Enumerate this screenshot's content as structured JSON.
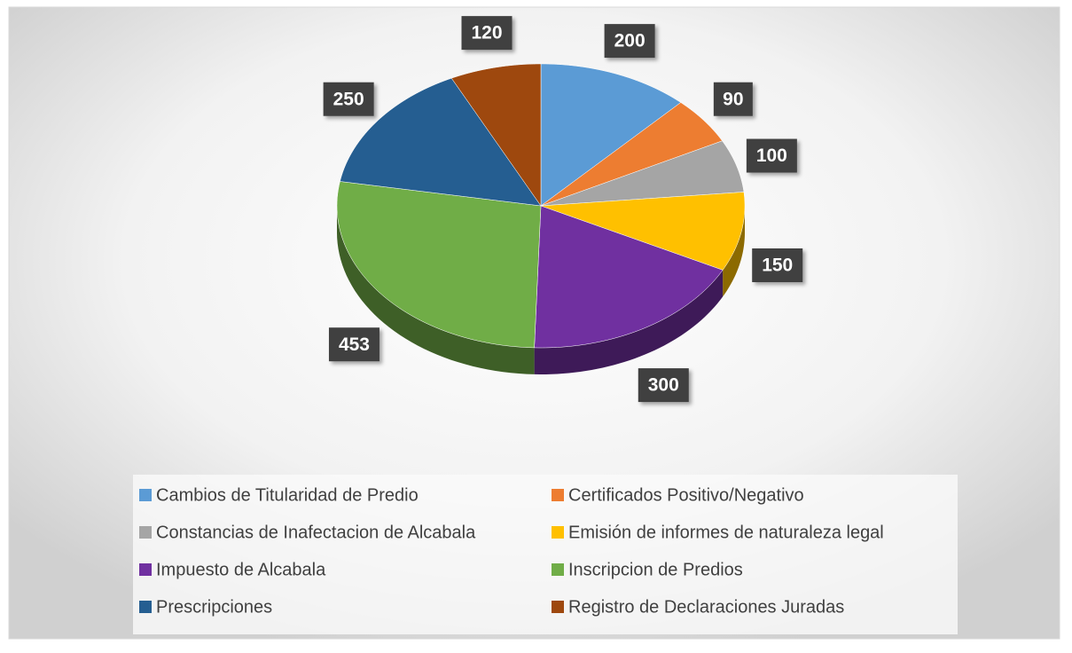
{
  "chart_data": {
    "type": "pie",
    "three_d": true,
    "categories": [
      "Cambios de Titularidad de Predio",
      "Certificados Positivo/Negativo",
      "Constancias de Inafectacion de Alcabala",
      "Emisión de informes de naturaleza legal",
      "Impuesto de Alcabala",
      "Inscripcion de Predios",
      "Prescripciones",
      "Registro de Declaraciones Juradas"
    ],
    "values": [
      200,
      90,
      100,
      150,
      300,
      453,
      250,
      120
    ],
    "colors": [
      "#5b9bd5",
      "#ed7d31",
      "#a5a5a5",
      "#ffc000",
      "#7030a0",
      "#70ad47",
      "#255e91",
      "#9e480e"
    ],
    "legend": "bottom"
  }
}
